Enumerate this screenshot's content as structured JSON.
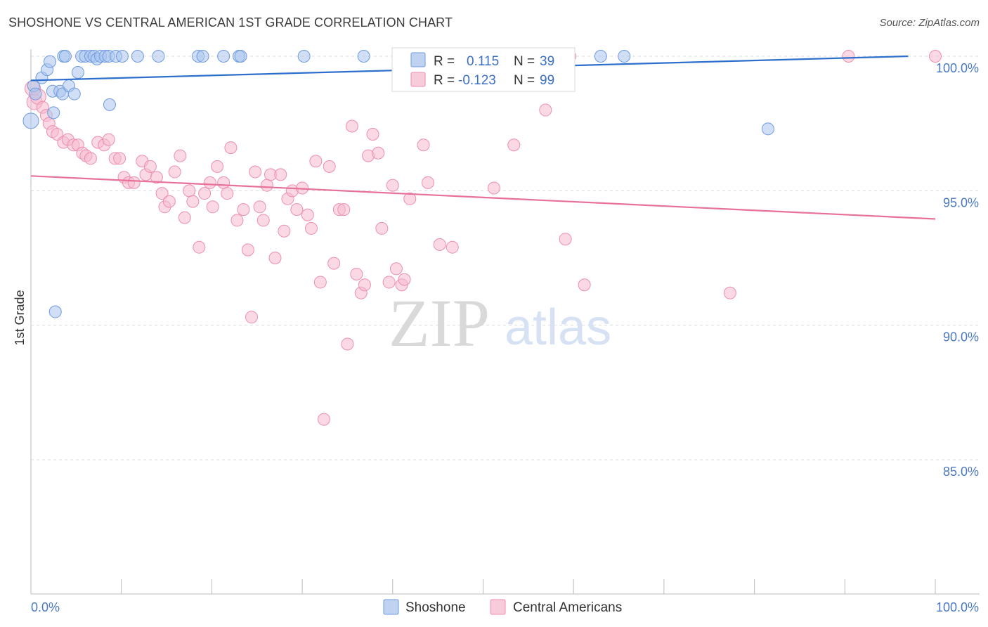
{
  "title": "SHOSHONE VS CENTRAL AMERICAN 1ST GRADE CORRELATION CHART",
  "source": "Source: ZipAtlas.com",
  "watermark": {
    "zip": "ZIP",
    "atlas": "atlas"
  },
  "colors": {
    "shoshone_fill": "#a9c4ec",
    "shoshone_stroke": "#6f9be0",
    "shoshone_line": "#2d6fcc",
    "central_fill": "#f6b9cd",
    "central_stroke": "#ec8fae",
    "central_line": "#e8719a",
    "tick_text": "#4a78c2"
  },
  "legend": {
    "r_label": "R =",
    "n_label": "N =",
    "shoshone_r": "0.115",
    "shoshone_n": "39",
    "central_r": "-0.123",
    "central_n": "99"
  },
  "chart_data": {
    "type": "scatter",
    "title": "SHOSHONE VS CENTRAL AMERICAN 1ST GRADE CORRELATION CHART",
    "xlabel": "",
    "ylabel": "1st Grade",
    "xlim": [
      0,
      100
    ],
    "ylim": [
      80.5,
      101
    ],
    "x_tick_labels": [
      "0.0%",
      "100.0%"
    ],
    "y_ticks": [
      100,
      95,
      90,
      85
    ],
    "y_tick_labels": [
      "100.0%",
      "95.0%",
      "90.0%",
      "85.0%"
    ],
    "grid": true,
    "series": [
      {
        "name": "Shoshone",
        "r": 0.115,
        "n": 39,
        "trend": {
          "x": [
            0,
            97
          ],
          "y": [
            99.1,
            100.0
          ]
        },
        "points": [
          [
            0,
            97.6
          ],
          [
            0.3,
            98.9
          ],
          [
            0.5,
            98.6
          ],
          [
            1.2,
            99.2
          ],
          [
            1.8,
            99.5
          ],
          [
            2.1,
            99.8
          ],
          [
            2.4,
            98.7
          ],
          [
            2.5,
            97.9
          ],
          [
            3.2,
            98.7
          ],
          [
            3.5,
            98.6
          ],
          [
            3.6,
            100
          ],
          [
            3.8,
            100
          ],
          [
            4.2,
            98.9
          ],
          [
            4.8,
            98.6
          ],
          [
            5.2,
            99.4
          ],
          [
            5.6,
            100
          ],
          [
            6.0,
            100
          ],
          [
            6.6,
            100
          ],
          [
            7.0,
            100
          ],
          [
            7.3,
            99.9
          ],
          [
            7.7,
            100
          ],
          [
            8.2,
            100
          ],
          [
            8.6,
            100
          ],
          [
            8.7,
            98.2
          ],
          [
            9.4,
            100
          ],
          [
            10.1,
            100
          ],
          [
            11.8,
            100
          ],
          [
            14.1,
            100
          ],
          [
            18.5,
            100
          ],
          [
            19.0,
            100
          ],
          [
            21.3,
            100
          ],
          [
            23.0,
            100
          ],
          [
            23.2,
            100
          ],
          [
            30.2,
            100
          ],
          [
            36.8,
            100
          ],
          [
            42.0,
            100
          ],
          [
            63.0,
            100
          ],
          [
            65.6,
            100
          ],
          [
            81.5,
            97.3
          ],
          [
            2.7,
            90.5
          ]
        ]
      },
      {
        "name": "Central Americans",
        "r": -0.123,
        "n": 99,
        "trend": {
          "x": [
            0,
            100
          ],
          "y": [
            95.55,
            93.95
          ]
        },
        "points": [
          [
            0.2,
            98.8
          ],
          [
            0.4,
            98.3
          ],
          [
            0.8,
            98.5
          ],
          [
            1.3,
            98.1
          ],
          [
            1.7,
            97.8
          ],
          [
            2.0,
            97.5
          ],
          [
            2.4,
            97.2
          ],
          [
            2.9,
            97.1
          ],
          [
            3.6,
            96.8
          ],
          [
            4.1,
            96.9
          ],
          [
            4.7,
            96.7
          ],
          [
            5.2,
            96.7
          ],
          [
            5.7,
            96.4
          ],
          [
            6.1,
            96.3
          ],
          [
            6.6,
            96.2
          ],
          [
            7.4,
            96.8
          ],
          [
            8.1,
            96.7
          ],
          [
            8.6,
            96.9
          ],
          [
            9.3,
            96.2
          ],
          [
            9.8,
            96.2
          ],
          [
            10.3,
            95.5
          ],
          [
            10.8,
            95.3
          ],
          [
            11.4,
            95.3
          ],
          [
            12.3,
            96.1
          ],
          [
            12.7,
            95.6
          ],
          [
            13.2,
            95.9
          ],
          [
            13.9,
            95.5
          ],
          [
            14.5,
            94.9
          ],
          [
            14.8,
            94.4
          ],
          [
            15.3,
            94.6
          ],
          [
            15.9,
            95.7
          ],
          [
            16.5,
            96.3
          ],
          [
            17.0,
            94.0
          ],
          [
            17.5,
            95.0
          ],
          [
            17.9,
            94.6
          ],
          [
            18.6,
            92.9
          ],
          [
            19.2,
            94.9
          ],
          [
            19.8,
            95.3
          ],
          [
            20.1,
            94.4
          ],
          [
            20.6,
            95.9
          ],
          [
            21.3,
            95.3
          ],
          [
            21.7,
            94.9
          ],
          [
            22.1,
            96.6
          ],
          [
            22.8,
            93.9
          ],
          [
            23.5,
            94.3
          ],
          [
            24.0,
            92.8
          ],
          [
            24.4,
            90.3
          ],
          [
            24.8,
            95.7
          ],
          [
            25.3,
            94.4
          ],
          [
            25.7,
            93.9
          ],
          [
            26.1,
            95.2
          ],
          [
            26.5,
            95.6
          ],
          [
            27.0,
            92.5
          ],
          [
            27.6,
            95.6
          ],
          [
            28.0,
            93.5
          ],
          [
            28.4,
            94.7
          ],
          [
            28.9,
            95.0
          ],
          [
            29.4,
            94.3
          ],
          [
            30.0,
            95.1
          ],
          [
            30.6,
            94.1
          ],
          [
            31.0,
            93.6
          ],
          [
            31.5,
            96.1
          ],
          [
            32.0,
            91.6
          ],
          [
            32.4,
            86.5
          ],
          [
            33.0,
            95.9
          ],
          [
            33.5,
            92.3
          ],
          [
            34.1,
            94.3
          ],
          [
            34.6,
            94.3
          ],
          [
            35.0,
            89.3
          ],
          [
            35.5,
            97.4
          ],
          [
            36.0,
            91.9
          ],
          [
            36.5,
            91.2
          ],
          [
            36.9,
            91.5
          ],
          [
            37.3,
            96.3
          ],
          [
            37.8,
            97.1
          ],
          [
            38.4,
            96.4
          ],
          [
            38.8,
            93.6
          ],
          [
            39.6,
            91.6
          ],
          [
            40.0,
            95.2
          ],
          [
            40.4,
            92.1
          ],
          [
            41.0,
            91.5
          ],
          [
            41.3,
            91.7
          ],
          [
            41.9,
            94.7
          ],
          [
            43.4,
            96.7
          ],
          [
            43.9,
            95.3
          ],
          [
            45.2,
            93.0
          ],
          [
            46.6,
            92.9
          ],
          [
            48.2,
            99.2
          ],
          [
            49.3,
            99.7
          ],
          [
            50.4,
            99.9
          ],
          [
            51.2,
            95.1
          ],
          [
            53.4,
            96.7
          ],
          [
            56.9,
            98.0
          ],
          [
            59.1,
            93.2
          ],
          [
            59.6,
            100
          ],
          [
            61.2,
            91.5
          ],
          [
            77.3,
            91.2
          ],
          [
            90.4,
            100
          ],
          [
            100,
            100
          ]
        ]
      }
    ]
  }
}
